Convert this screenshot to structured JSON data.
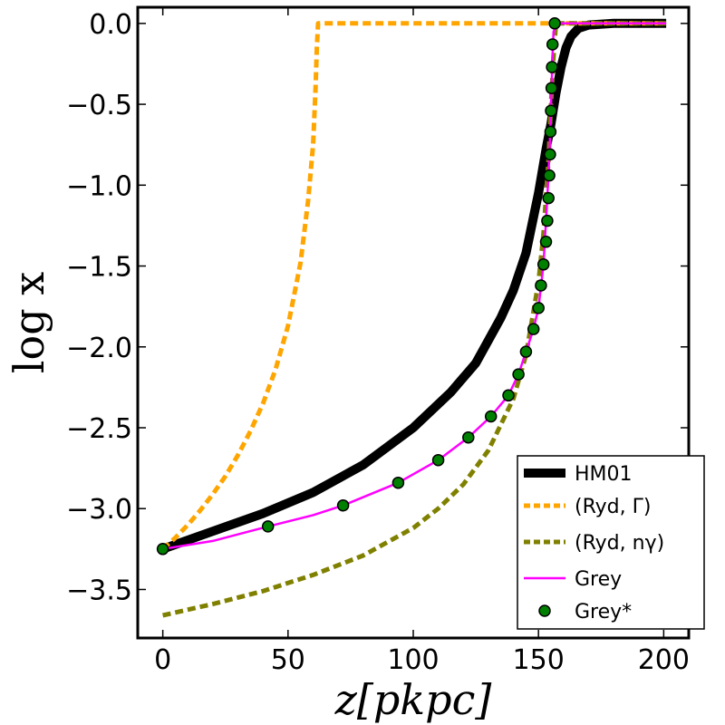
{
  "chart_data": {
    "type": "line",
    "xlabel": "z[pkpc]",
    "ylabel": "log x",
    "xlim": [
      -10,
      210
    ],
    "ylim": [
      -3.8,
      0.1
    ],
    "xticks": [
      0,
      50,
      100,
      150,
      200
    ],
    "xtick_labels": [
      "0",
      "50",
      "100",
      "150",
      "200"
    ],
    "yticks": [
      0.0,
      -0.5,
      -1.0,
      -1.5,
      -2.0,
      -2.5,
      -3.0,
      -3.5
    ],
    "ytick_labels": [
      "0.0",
      "−0.5",
      "−1.0",
      "−1.5",
      "−2.0",
      "−2.5",
      "−3.0",
      "−3.5"
    ],
    "legend_position": "bottom-right",
    "series": [
      {
        "name": "HM01",
        "label": "HM01",
        "color": "#000000",
        "style": "solid-thick",
        "x": [
          0,
          20,
          40,
          60,
          80,
          100,
          115,
          125,
          135,
          140,
          145,
          150,
          153,
          155,
          157,
          159,
          161,
          163,
          166,
          170,
          180,
          201
        ],
        "y": [
          -3.25,
          -3.14,
          -3.03,
          -2.9,
          -2.73,
          -2.5,
          -2.28,
          -2.1,
          -1.82,
          -1.65,
          -1.42,
          -1.05,
          -0.78,
          -0.62,
          -0.43,
          -0.27,
          -0.15,
          -0.08,
          -0.03,
          -0.01,
          0.0,
          0.0
        ]
      },
      {
        "name": "Ryd-Gamma",
        "label": "(Ryd, Γ)",
        "color": "#ffa500",
        "style": "dashed",
        "x": [
          0,
          5,
          10,
          15,
          20,
          25,
          30,
          35,
          40,
          45,
          50,
          55,
          58,
          60,
          61,
          61.5,
          62,
          100,
          155,
          201
        ],
        "y": [
          -3.25,
          -3.18,
          -3.1,
          -3.01,
          -2.91,
          -2.8,
          -2.67,
          -2.52,
          -2.35,
          -2.14,
          -1.87,
          -1.48,
          -1.1,
          -0.75,
          -0.4,
          -0.15,
          0.0,
          0.0,
          0.0,
          0.0
        ]
      },
      {
        "name": "Ryd-ngamma",
        "label": "(Ryd, nγ)",
        "color": "#808000",
        "style": "dashed",
        "x": [
          0,
          20,
          40,
          60,
          80,
          100,
          110,
          120,
          130,
          140,
          145,
          150,
          152,
          154,
          155,
          156,
          157,
          160,
          180,
          201
        ],
        "y": [
          -3.66,
          -3.59,
          -3.51,
          -3.41,
          -3.29,
          -3.12,
          -3.0,
          -2.85,
          -2.64,
          -2.32,
          -2.05,
          -1.6,
          -1.3,
          -0.85,
          -0.5,
          -0.2,
          0.0,
          0.0,
          0.0,
          0.0
        ]
      },
      {
        "name": "Grey",
        "label": "Grey",
        "color": "#ff00ff",
        "style": "solid-thin",
        "x": [
          0,
          20,
          42,
          60,
          72,
          94,
          110,
          122,
          131,
          138,
          142,
          145,
          148,
          150,
          152,
          153,
          154,
          154.7,
          155.2,
          155.6,
          156,
          158,
          162,
          201
        ],
        "y": [
          -3.25,
          -3.2,
          -3.11,
          -3.04,
          -2.98,
          -2.84,
          -2.7,
          -2.56,
          -2.43,
          -2.3,
          -2.17,
          -2.03,
          -1.89,
          -1.76,
          -1.49,
          -1.22,
          -0.94,
          -0.67,
          -0.4,
          -0.2,
          -0.05,
          0.0,
          0.0,
          0.0
        ]
      }
    ],
    "markers": {
      "name": "Grey*",
      "label": "Grey*",
      "color": "#008000",
      "edge_color": "#000000",
      "x": [
        0,
        42,
        72,
        94,
        110,
        122,
        131,
        138,
        142,
        145,
        148,
        150,
        151,
        152,
        153,
        153.5,
        154,
        154.3,
        154.6,
        154.8,
        155,
        155.2,
        155.4,
        155.6,
        156.5
      ],
      "y": [
        -3.25,
        -3.11,
        -2.98,
        -2.84,
        -2.7,
        -2.56,
        -2.43,
        -2.3,
        -2.17,
        -2.03,
        -1.89,
        -1.76,
        -1.62,
        -1.49,
        -1.35,
        -1.22,
        -1.08,
        -0.94,
        -0.81,
        -0.67,
        -0.54,
        -0.4,
        -0.27,
        -0.13,
        0.0
      ]
    }
  }
}
